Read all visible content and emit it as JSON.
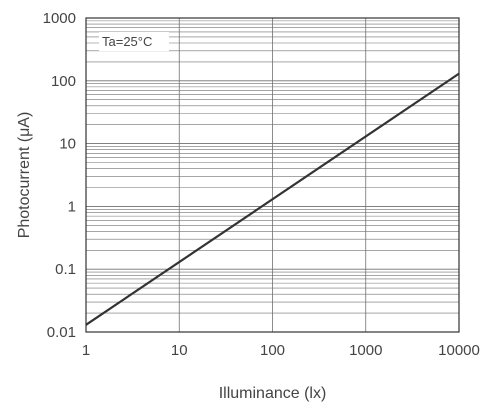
{
  "chart_data": {
    "type": "line",
    "xlabel": "Illuminance  (lx)",
    "ylabel": "Photocurrent  (μA)",
    "x_scale": "log",
    "y_scale": "log",
    "xlim": [
      1,
      10000
    ],
    "ylim": [
      0.01,
      1000
    ],
    "grid": true,
    "x_ticks": [
      "1",
      "10",
      "100",
      "1000",
      "10000"
    ],
    "y_ticks": [
      "0.01",
      "0.1",
      "1",
      "10",
      "100",
      "1000"
    ],
    "annotation": "Ta=25°C",
    "series": [
      {
        "x": [
          1,
          10000
        ],
        "y": [
          0.013,
          130
        ]
      }
    ],
    "colors": {
      "line": "#333333",
      "grid": "#707070",
      "frame": "#333333"
    }
  }
}
